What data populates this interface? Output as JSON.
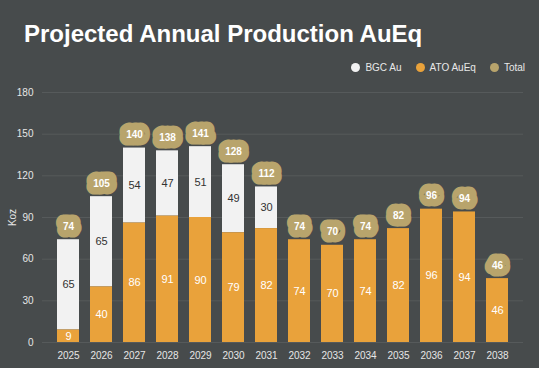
{
  "chart_data": {
    "type": "bar",
    "title": "Projected Annual Production AuEq",
    "y_label": "Koz",
    "categories": [
      "2025",
      "2026",
      "2027",
      "2028",
      "2029",
      "2030",
      "2031",
      "2032",
      "2033",
      "2034",
      "2035",
      "2036",
      "2037",
      "2038"
    ],
    "series": [
      {
        "name": "BGC Au",
        "color": "#f2f2f2",
        "values": [
          65,
          65,
          54,
          47,
          51,
          49,
          30,
          null,
          null,
          null,
          null,
          null,
          null,
          null
        ]
      },
      {
        "name": "ATO AuEq",
        "color": "#e9a23b",
        "values": [
          9,
          40,
          86,
          91,
          90,
          79,
          82,
          74,
          70,
          74,
          82,
          96,
          94,
          46
        ]
      },
      {
        "name": "Total",
        "color": "#b8a46c",
        "type": "label",
        "values": [
          74,
          105,
          140,
          138,
          141,
          128,
          112,
          74,
          70,
          74,
          82,
          96,
          94,
          46
        ]
      }
    ],
    "stacked": true,
    "data_labels": true,
    "legend": "top-right",
    "grid": true,
    "ylim": [
      0,
      180
    ],
    "yticks": [
      0,
      30,
      60,
      90,
      120,
      150,
      180
    ]
  }
}
